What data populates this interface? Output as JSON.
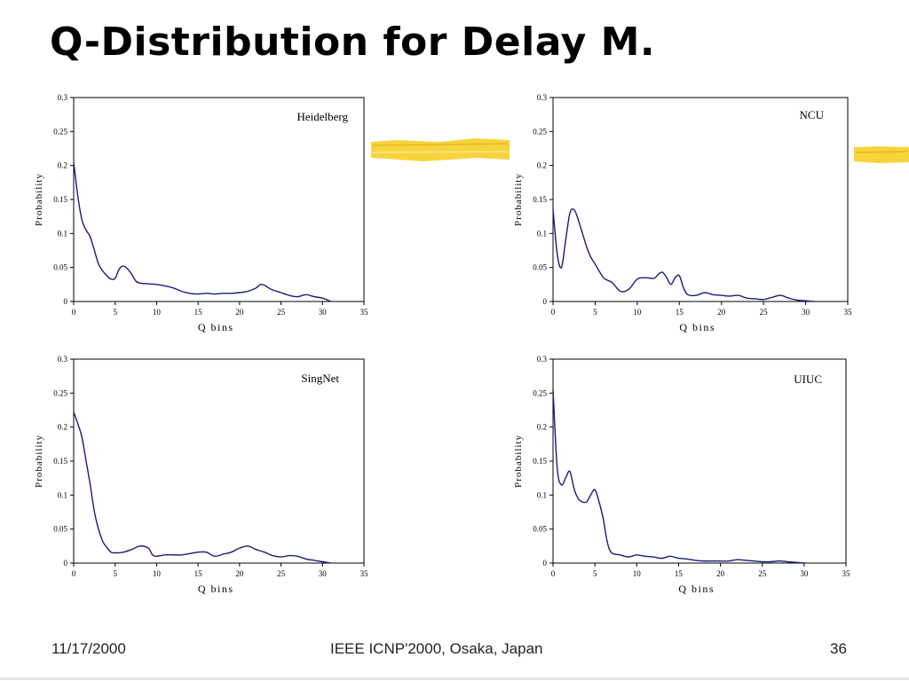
{
  "slide": {
    "title": "Q-Distribution for Delay M."
  },
  "footer": {
    "date": "11/17/2000",
    "conference": "IEEE ICNP'2000, Osaka, Japan",
    "page_number": "36"
  },
  "colors": {
    "series_line": "#1a1a7a",
    "plot_border": "#000000",
    "highlight": "#f7d33c"
  },
  "chart_data": [
    {
      "type": "line",
      "title": "Heidelberg",
      "xlabel": "Q bins",
      "ylabel": "Probability",
      "xlim": [
        0,
        35
      ],
      "ylim": [
        0,
        0.3
      ],
      "xticks": [
        "0",
        "5",
        "10",
        "15",
        "20",
        "25",
        "30",
        "35"
      ],
      "yticks": [
        "0",
        "0.05",
        "0.1",
        "0.15",
        "0.2",
        "0.25",
        "0.3"
      ],
      "grid": false,
      "series": [
        {
          "x": [
            0,
            0.5,
            1,
            1.5,
            2,
            2.5,
            3,
            3.5,
            4,
            4.5,
            5,
            5.5,
            6,
            6.5,
            7,
            7.5,
            8,
            9,
            10,
            11,
            12,
            13,
            14,
            15,
            16,
            17,
            18,
            19,
            20,
            21,
            22,
            22.5,
            23,
            23.5,
            24,
            25,
            26,
            27,
            28,
            29,
            30,
            31
          ],
          "y": [
            0.205,
            0.155,
            0.12,
            0.105,
            0.095,
            0.075,
            0.055,
            0.045,
            0.038,
            0.033,
            0.034,
            0.048,
            0.052,
            0.048,
            0.04,
            0.03,
            0.027,
            0.026,
            0.025,
            0.023,
            0.02,
            0.015,
            0.012,
            0.011,
            0.012,
            0.011,
            0.012,
            0.012,
            0.013,
            0.015,
            0.02,
            0.025,
            0.024,
            0.02,
            0.017,
            0.013,
            0.009,
            0.007,
            0.01,
            0.007,
            0.005,
            0.0
          ]
        }
      ]
    },
    {
      "type": "line",
      "title": "NCU",
      "xlabel": "Q bins",
      "ylabel": "Probability",
      "xlim": [
        0,
        35
      ],
      "ylim": [
        0,
        0.3
      ],
      "xticks": [
        "0",
        "5",
        "10",
        "15",
        "20",
        "25",
        "30",
        "35"
      ],
      "yticks": [
        "0",
        "0.05",
        "0.1",
        "0.15",
        "0.2",
        "0.25",
        "0.3"
      ],
      "grid": false,
      "series": [
        {
          "x": [
            0,
            0.5,
            1,
            1.5,
            2,
            2.5,
            3,
            3.5,
            4,
            4.5,
            5,
            6,
            7,
            8,
            9,
            10,
            11,
            12,
            12.5,
            13,
            13.5,
            14,
            14.5,
            15,
            15.5,
            16,
            17,
            18,
            19,
            20,
            21,
            22,
            23,
            24,
            25,
            26,
            27,
            28,
            29,
            30,
            31
          ],
          "y": [
            0.135,
            0.07,
            0.05,
            0.09,
            0.13,
            0.135,
            0.12,
            0.1,
            0.08,
            0.065,
            0.055,
            0.035,
            0.028,
            0.015,
            0.018,
            0.033,
            0.035,
            0.034,
            0.04,
            0.043,
            0.035,
            0.025,
            0.035,
            0.038,
            0.02,
            0.01,
            0.009,
            0.013,
            0.01,
            0.009,
            0.008,
            0.009,
            0.005,
            0.004,
            0.003,
            0.006,
            0.009,
            0.005,
            0.002,
            0.001,
            0.0
          ]
        }
      ]
    },
    {
      "type": "line",
      "title": "SingNet",
      "xlabel": "Q bins",
      "ylabel": "Probability",
      "xlim": [
        0,
        35
      ],
      "ylim": [
        0,
        0.3
      ],
      "xticks": [
        "0",
        "5",
        "10",
        "15",
        "20",
        "25",
        "30",
        "35"
      ],
      "yticks": [
        "0",
        "0.05",
        "0.1",
        "0.15",
        "0.2",
        "0.25",
        "0.3"
      ],
      "grid": false,
      "series": [
        {
          "x": [
            0,
            0.5,
            1,
            1.5,
            2,
            2.5,
            3,
            3.5,
            4,
            4.5,
            5,
            6,
            7,
            8,
            9,
            9.5,
            10,
            11,
            12,
            13,
            14,
            15,
            16,
            17,
            18,
            19,
            20,
            21,
            22,
            23,
            24,
            25,
            26,
            27,
            28,
            29,
            30,
            31
          ],
          "y": [
            0.222,
            0.205,
            0.185,
            0.15,
            0.115,
            0.075,
            0.05,
            0.032,
            0.023,
            0.016,
            0.015,
            0.016,
            0.02,
            0.025,
            0.022,
            0.012,
            0.01,
            0.012,
            0.012,
            0.012,
            0.014,
            0.016,
            0.016,
            0.01,
            0.013,
            0.016,
            0.022,
            0.025,
            0.02,
            0.016,
            0.011,
            0.009,
            0.011,
            0.01,
            0.006,
            0.004,
            0.002,
            0.0
          ]
        }
      ]
    },
    {
      "type": "line",
      "title": "UIUC",
      "xlabel": "Q bins",
      "ylabel": "Probability",
      "xlim": [
        0,
        35
      ],
      "ylim": [
        0,
        0.3
      ],
      "xticks": [
        "0",
        "5",
        "10",
        "15",
        "20",
        "25",
        "30",
        "35"
      ],
      "yticks": [
        "0",
        "0.05",
        "0.1",
        "0.15",
        "0.2",
        "0.25",
        "0.3"
      ],
      "grid": false,
      "series": [
        {
          "x": [
            0,
            0.5,
            1,
            1.5,
            2,
            2.5,
            3,
            3.5,
            4,
            4.5,
            5,
            5.5,
            6,
            6.5,
            7,
            8,
            9,
            10,
            11,
            12,
            13,
            14,
            15,
            16,
            17,
            18,
            19,
            20,
            21,
            22,
            23,
            24,
            25,
            26,
            27,
            28,
            29,
            30
          ],
          "y": [
            0.255,
            0.14,
            0.115,
            0.125,
            0.135,
            0.11,
            0.095,
            0.09,
            0.09,
            0.1,
            0.108,
            0.09,
            0.065,
            0.03,
            0.015,
            0.012,
            0.009,
            0.012,
            0.01,
            0.009,
            0.007,
            0.01,
            0.007,
            0.006,
            0.004,
            0.003,
            0.003,
            0.003,
            0.003,
            0.005,
            0.004,
            0.003,
            0.002,
            0.002,
            0.003,
            0.002,
            0.001,
            0.0
          ]
        }
      ]
    }
  ]
}
